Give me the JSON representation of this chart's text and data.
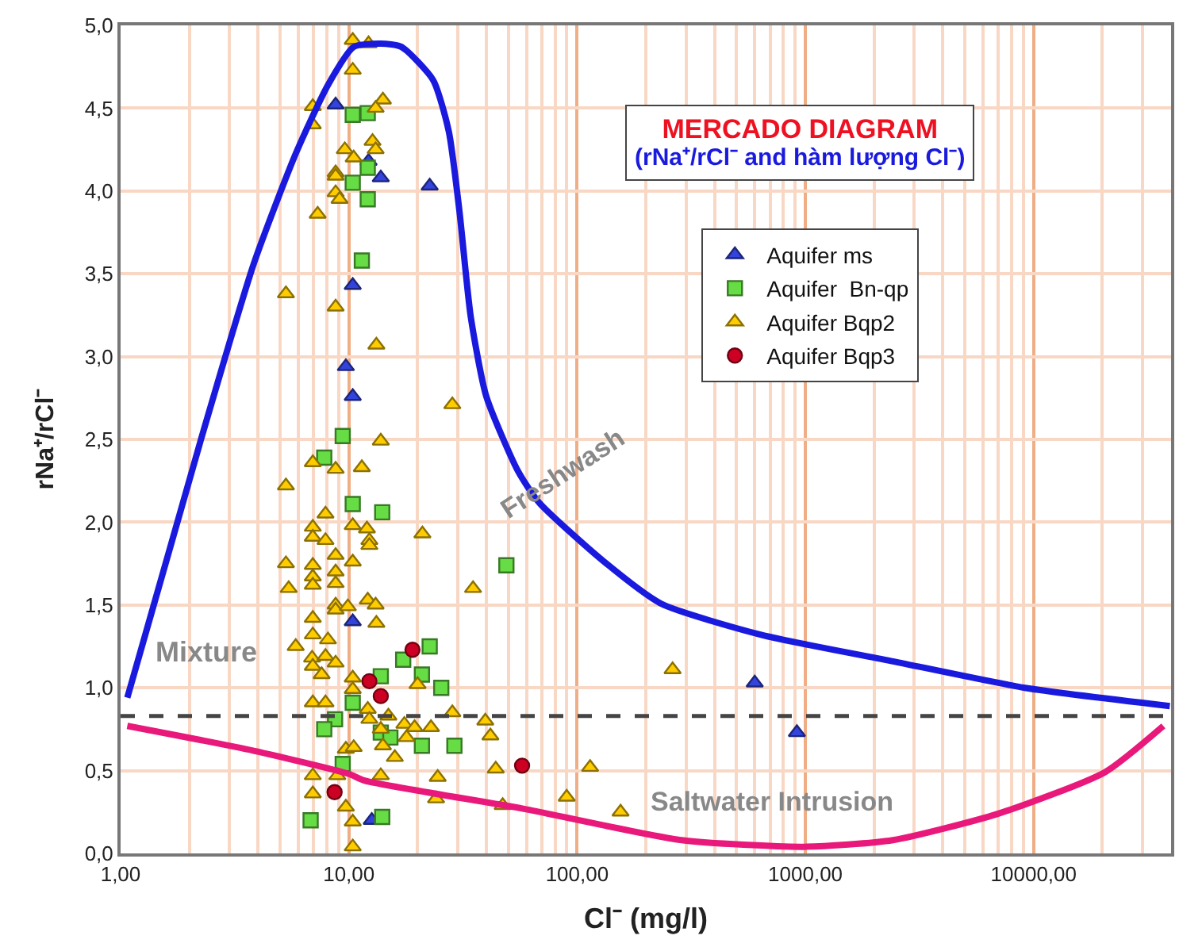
{
  "chart_data": {
    "type": "scatter",
    "title": "MERCADO DIAGRAM",
    "subtitle": "(rNa⁺/rCl⁻ and hàm lượng Cl⁻)",
    "xlabel": "Cl⁻ (mg/l)",
    "ylabel": "rNa⁺/rCl⁻",
    "log": "x",
    "xlim": [
      1,
      40000
    ],
    "xticks": [
      {
        "value": 1,
        "label": "1,00"
      },
      {
        "value": 10,
        "label": "10,00"
      },
      {
        "value": 100,
        "label": "100,00"
      },
      {
        "value": 1000,
        "label": "1000,00"
      },
      {
        "value": 10000,
        "label": "10000,00"
      }
    ],
    "ylim": [
      0,
      5
    ],
    "yticks": [
      {
        "value": 0,
        "label": "0,0"
      },
      {
        "value": 0.5,
        "label": "0,5"
      },
      {
        "value": 1,
        "label": "1,0"
      },
      {
        "value": 1.5,
        "label": "1,5"
      },
      {
        "value": 2,
        "label": "2,0"
      },
      {
        "value": 2.5,
        "label": "2,5"
      },
      {
        "value": 3,
        "label": "3,0"
      },
      {
        "value": 3.5,
        "label": "3,5"
      },
      {
        "value": 4,
        "label": "4,0"
      },
      {
        "value": 4.5,
        "label": "4,5"
      },
      {
        "value": 5,
        "label": "5,0"
      }
    ],
    "grid": true,
    "legend": "top right",
    "series": [
      {
        "name": "Aquifer ms",
        "marker": "triangle",
        "color": "#3344dd",
        "x": [
          8.75,
          12.2,
          13.8,
          22.6,
          10.4,
          9.7,
          10.4,
          10.4,
          12.6,
          600,
          918
        ],
        "values": [
          4.52,
          4.18,
          4.08,
          4.03,
          3.43,
          2.94,
          2.76,
          1.4,
          0.2,
          1.03,
          0.73
        ]
      },
      {
        "name": "Aquifer  Bn-qp",
        "marker": "square",
        "color": "#66dd44",
        "x": [
          10.4,
          12.1,
          12.1,
          10.4,
          12.1,
          11.4,
          9.4,
          7.8,
          10.4,
          14.0,
          22.6,
          17.3,
          20.9,
          13.8,
          25.4,
          10.4,
          8.7,
          7.8,
          13.8,
          15.2,
          20.9,
          29.0,
          9.4,
          6.8,
          14.0,
          49
        ],
        "values": [
          4.46,
          4.47,
          4.14,
          4.05,
          3.95,
          3.58,
          2.52,
          2.39,
          2.11,
          2.06,
          1.25,
          1.17,
          1.08,
          1.07,
          1.0,
          0.91,
          0.81,
          0.75,
          0.73,
          0.7,
          0.65,
          0.65,
          0.54,
          0.2,
          0.22,
          1.74
        ]
      },
      {
        "name": "Aquifer Bqp2",
        "marker": "triangle",
        "color": "#ffcc00",
        "x": [
          10.4,
          12.2,
          10.4,
          6.95,
          6.95,
          14.1,
          13.1,
          12.7,
          13.1,
          9.6,
          10.5,
          8.75,
          8.75,
          8.75,
          9.1,
          7.3,
          5.3,
          8.75,
          13.2,
          28.4,
          13.8,
          6.95,
          8.75,
          11.4,
          5.3,
          7.9,
          6.95,
          6.95,
          7.9,
          10.4,
          12.0,
          12.3,
          12.3,
          21.0,
          8.75,
          5.3,
          6.95,
          10.4,
          8.75,
          6.95,
          6.95,
          8.75,
          5.45,
          8.75,
          8.75,
          9.9,
          12.1,
          13.1,
          13.2,
          6.95,
          6.95,
          8.1,
          5.85,
          6.9,
          7.9,
          8.75,
          6.95,
          7.6,
          10.4,
          10.4,
          20.0,
          6.95,
          7.9,
          12.1,
          12.3,
          14.9,
          13.8,
          17.5,
          19.4,
          22.9,
          17.9,
          14.1,
          28.4,
          9.7,
          10.5,
          15.9,
          6.95,
          8.9,
          13.8,
          24.5,
          24.1,
          6.95,
          9.7,
          10.4,
          10.4,
          35,
          262,
          39.6,
          41.7,
          44,
          47.2,
          90,
          114,
          155
        ],
        "values": [
          4.91,
          4.89,
          4.73,
          4.51,
          4.4,
          4.55,
          4.5,
          4.3,
          4.25,
          4.25,
          4.2,
          4.11,
          4.09,
          3.99,
          3.95,
          3.86,
          3.38,
          3.3,
          3.07,
          2.71,
          2.49,
          2.36,
          2.32,
          2.33,
          2.22,
          2.05,
          1.97,
          1.91,
          1.89,
          1.98,
          1.96,
          1.89,
          1.86,
          1.93,
          1.8,
          1.75,
          1.74,
          1.76,
          1.7,
          1.67,
          1.62,
          1.63,
          1.6,
          1.5,
          1.47,
          1.49,
          1.53,
          1.5,
          1.39,
          1.42,
          1.32,
          1.29,
          1.25,
          1.18,
          1.19,
          1.15,
          1.13,
          1.08,
          1.06,
          0.99,
          1.02,
          0.91,
          0.91,
          0.87,
          0.81,
          0.83,
          0.75,
          0.78,
          0.76,
          0.76,
          0.7,
          0.65,
          0.85,
          0.63,
          0.64,
          0.58,
          0.47,
          0.47,
          0.47,
          0.46,
          0.33,
          0.36,
          0.28,
          0.19,
          0.04,
          1.6,
          1.11,
          0.8,
          0.71,
          0.51,
          0.29,
          0.34,
          0.52,
          0.25
        ]
      },
      {
        "name": "Aquifer Bqp3",
        "marker": "circle",
        "color": "#cc0022",
        "x": [
          19.0,
          12.3,
          13.8,
          8.66,
          57.4
        ],
        "values": [
          1.23,
          1.04,
          0.95,
          0.37,
          0.53
        ]
      },
      {
        "name": "Freshwash",
        "type": "line",
        "marker": "none",
        "color": "#1a1adf",
        "x": [
          1.07,
          2.25,
          3.83,
          5.87,
          8.1,
          10.5,
          13.8,
          17.0,
          23.4,
          27.4,
          30.5,
          34.2,
          40.0,
          55,
          68,
          129,
          232,
          640,
          2420,
          9160,
          39500
        ],
        "values": [
          0.94,
          2.5,
          3.56,
          4.23,
          4.64,
          4.87,
          4.89,
          4.87,
          4.67,
          4.36,
          3.88,
          3.24,
          2.76,
          2.31,
          2.12,
          1.77,
          1.51,
          1.32,
          1.16,
          1.0,
          0.89
        ]
      },
      {
        "name": "Saltwater Intrusion",
        "type": "line",
        "marker": "none",
        "color": "#e8197a",
        "x": [
          1.07,
          3.83,
          10,
          11.7,
          58,
          287,
          977,
          2420,
          7000,
          20500,
          37000
        ],
        "values": [
          0.77,
          0.62,
          0.48,
          0.44,
          0.27,
          0.08,
          0.04,
          0.08,
          0.24,
          0.49,
          0.77
        ]
      }
    ],
    "ref_lines": [
      {
        "axis": "y",
        "value": 0.83,
        "color": "#444444",
        "line_style": "dashed"
      }
    ],
    "annotations": [
      "Mixture"
    ]
  }
}
